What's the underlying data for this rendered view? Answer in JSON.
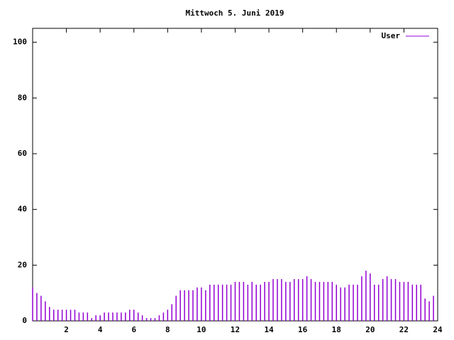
{
  "chart_data": {
    "type": "impulse",
    "title": "Mittwoch 5. Juni 2019",
    "series": [
      {
        "name": "User",
        "color": "#9400d3",
        "x": [
          0,
          0.25,
          0.5,
          0.75,
          1,
          1.25,
          1.5,
          1.75,
          2,
          2.25,
          2.5,
          2.75,
          3,
          3.25,
          3.5,
          3.75,
          4,
          4.25,
          4.5,
          4.75,
          5,
          5.25,
          5.5,
          5.75,
          6,
          6.25,
          6.5,
          6.75,
          7,
          7.25,
          7.5,
          7.75,
          8,
          8.25,
          8.5,
          8.75,
          9,
          9.25,
          9.5,
          9.75,
          10,
          10.25,
          10.5,
          10.75,
          11,
          11.25,
          11.5,
          11.75,
          12,
          12.25,
          12.5,
          12.75,
          13,
          13.25,
          13.5,
          13.75,
          14,
          14.25,
          14.5,
          14.75,
          15,
          15.25,
          15.5,
          15.75,
          16,
          16.25,
          16.5,
          16.75,
          17,
          17.25,
          17.5,
          17.75,
          18,
          18.25,
          18.5,
          18.75,
          19,
          19.25,
          19.5,
          19.75,
          20,
          20.25,
          20.5,
          20.75,
          21,
          21.25,
          21.5,
          21.75,
          22,
          22.25,
          22.5,
          22.75,
          23,
          23.25,
          23.5,
          23.75
        ],
        "values": [
          12,
          10,
          9,
          7,
          5,
          4,
          4,
          4,
          4,
          4,
          4,
          3,
          3,
          3,
          1,
          2,
          2,
          3,
          3,
          3,
          3,
          3,
          3,
          4,
          4,
          3,
          2,
          1,
          1,
          1,
          2,
          3,
          4,
          6,
          9,
          11,
          11,
          11,
          11,
          12,
          12,
          11,
          13,
          13,
          13,
          13,
          13,
          13,
          14,
          14,
          14,
          13,
          14,
          13,
          13,
          14,
          14,
          15,
          15,
          15,
          14,
          14,
          15,
          15,
          15,
          16,
          15,
          14,
          14,
          14,
          14,
          14,
          13,
          12,
          12,
          13,
          13,
          13,
          16,
          18,
          17,
          13,
          13,
          15,
          16,
          15,
          15,
          14,
          14,
          14,
          13,
          13,
          13,
          8,
          7,
          9
        ]
      }
    ],
    "xlim": [
      0,
      24
    ],
    "xticks": [
      2,
      4,
      6,
      8,
      10,
      12,
      14,
      16,
      18,
      20,
      22,
      24
    ],
    "ylim": [
      0,
      105
    ],
    "yticks": [
      0,
      20,
      40,
      60,
      80,
      100
    ],
    "legend": "top-right"
  }
}
